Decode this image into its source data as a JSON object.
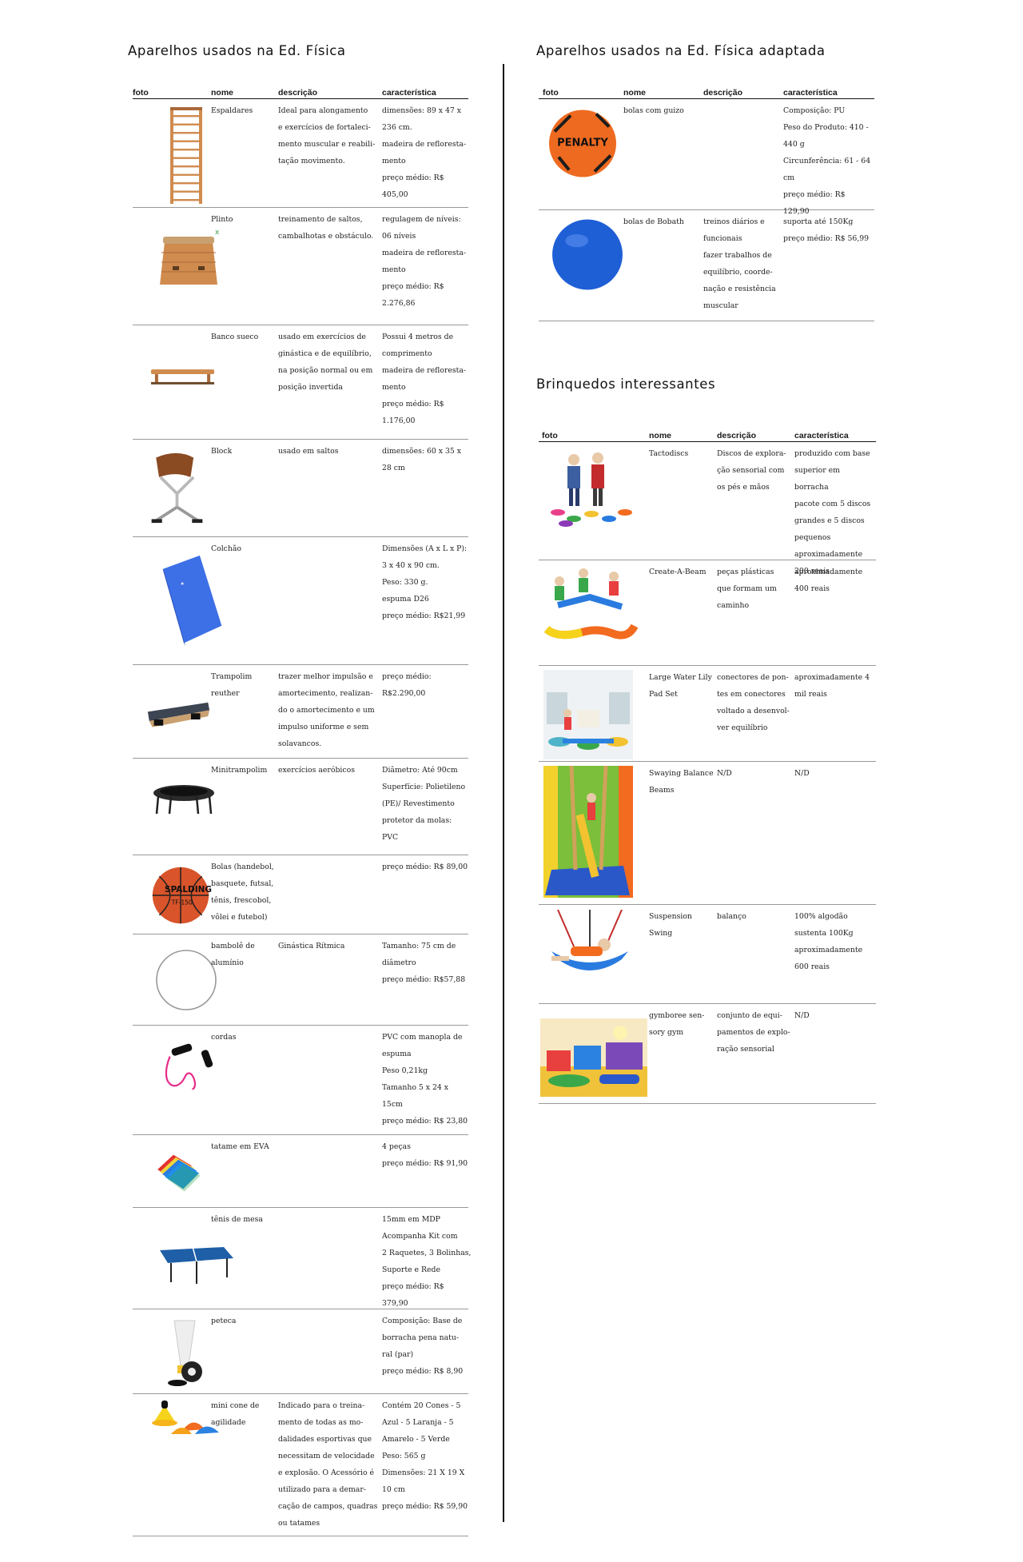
{
  "sections": {
    "left_title": "Aparelhos usados na Ed. Física",
    "adapt_title": "Aparelhos usados na Ed. Física adaptada",
    "toys_title": "Brinquedos interessantes"
  },
  "headers": {
    "foto": "foto",
    "nome": "nome",
    "descricao": "descrição",
    "caracteristica": "característica"
  },
  "left_rows": [
    {
      "icon": "wall-bars-photo",
      "nome": [
        "Espaldares"
      ],
      "desc": [
        "Ideal para alongamento",
        "e exercícios de fortaleci-",
        "mento muscular e reabili-",
        "tação movimento."
      ],
      "carac": [
        "dimensões: 89 x 47 x",
        "236 cm.",
        "madeira de refloresta-",
        "mento",
        "preço médio: R$ 405,00"
      ]
    },
    {
      "icon": "vaulting-box-photo",
      "nome": [
        "Plinto"
      ],
      "desc": [
        "treinamento de saltos,",
        "cambalhotas e obstáculo."
      ],
      "carac": [
        "regulagem de níveis:",
        "06 níveis",
        "madeira de refloresta-",
        "mento",
        "preço médio: R$",
        "2.276,86"
      ]
    },
    {
      "icon": "swedish-bench-photo",
      "nome": [
        "Banco sueco"
      ],
      "desc": [
        "usado em exercícios de",
        "ginástica e de equilíbrio,",
        "na posição normal ou em",
        "posição invertida"
      ],
      "carac": [
        "Possui 4 metros de",
        "comprimento",
        "madeira de refloresta-",
        "mento",
        "preço médio:  R$",
        "1.176,00"
      ]
    },
    {
      "icon": "pommel-block-photo",
      "nome": [
        "Block"
      ],
      "desc": [
        "usado em saltos"
      ],
      "carac": [
        "dimensões: 60 x 35 x",
        "28 cm"
      ]
    },
    {
      "icon": "mattress-photo",
      "nome": [
        "Colchão"
      ],
      "desc": [],
      "carac": [
        "Dimensões (A x L x P):",
        "3 x 40 x 90 cm.",
        "Peso: 330 g.",
        "espuma D26",
        "preço médio: R$21,99"
      ]
    },
    {
      "icon": "springboard-photo",
      "nome": [
        "Trampolim",
        "reuther"
      ],
      "desc": [
        "trazer melhor impulsão e",
        "amortecimento, realizan-",
        "do o amortecimento e um",
        "impulso uniforme e sem",
        "solavancos."
      ],
      "carac": [
        "preço médio:",
        "R$2.290,00"
      ]
    },
    {
      "icon": "mini-trampoline-photo",
      "nome": [
        "Minitrampolim"
      ],
      "desc": [
        "exercícios aeróbicos"
      ],
      "carac": [
        "Diâmetro: Até 90cm",
        "Superfície: Polietileno",
        "(PE)/ Revestimento",
        "protetor da molas:",
        "PVC"
      ]
    },
    {
      "icon": "basketball-photo",
      "nome": [
        "Bolas (handebol,",
        "basquete, futsal,",
        "tênis, frescobol,",
        "vôlei e futebol)"
      ],
      "desc": [],
      "carac": [
        "preço médio: R$ 89,00"
      ]
    },
    {
      "icon": "hula-hoop-photo",
      "nome": [
        "bambolê de",
        "alumínio"
      ],
      "desc": [
        "Ginástica Rítmica"
      ],
      "carac": [
        "Tamanho: 75 cm de",
        "diâmetro",
        "preço médio: R$57,88"
      ]
    },
    {
      "icon": "jump-rope-photo",
      "nome": [
        "cordas"
      ],
      "desc": [],
      "carac": [
        "PVC com manopla de",
        "espuma",
        "Peso 0,21kg",
        "Tamanho 5 x 24 x",
        "15cm",
        "preço médio: R$ 23,80"
      ]
    },
    {
      "icon": "eva-mat-photo",
      "nome": [
        "tatame em EVA"
      ],
      "desc": [],
      "carac": [
        "4 peças",
        "preço médio: R$ 91,90"
      ]
    },
    {
      "icon": "ping-pong-table-photo",
      "nome": [
        "tênis de mesa"
      ],
      "desc": [],
      "carac": [
        "15mm em MDP",
        "Acompanha Kit com",
        "2 Raquetes, 3 Bolinhas,",
        "Suporte e Rede",
        "preço médio: R$ 379,90"
      ]
    },
    {
      "icon": "shuttlecock-photo",
      "nome": [
        "peteca"
      ],
      "desc": [],
      "carac": [
        "Composição: Base de",
        "borracha pena natu-",
        "ral (par)",
        "preço médio: R$ 8,90"
      ]
    },
    {
      "icon": "agility-cones-photo",
      "nome": [
        "mini cone de",
        "agilidade"
      ],
      "desc": [
        "Indicado para o treina-",
        "mento de todas as mo-",
        "dalidades esportivas que",
        "necessitam de velocidade",
        "e explosão. O Acessório é",
        "utilizado para a demar-",
        "cação de campos, quadras",
        "ou tatames"
      ],
      "carac": [
        "Contém 20 Cones - 5",
        "Azul - 5 Laranja - 5",
        "Amarelo - 5 Verde",
        "Peso: 565 g",
        "Dimensões: 21 X 19 X",
        "10 cm",
        "preço médio: R$ 59,90"
      ]
    }
  ],
  "adapt_rows": [
    {
      "icon": "bell-ball-photo",
      "ball_brand": "PENALTY",
      "nome": [
        "bolas com guizo"
      ],
      "desc": [],
      "carac": [
        "Composição: PU",
        "Peso do Produto: 410 -",
        "440 g",
        "Circunferência: 61 - 64",
        "cm",
        "preço médio: R$ 129,90"
      ]
    },
    {
      "icon": "bobath-ball-photo",
      "nome": [
        "bolas de Bobath"
      ],
      "desc": [
        "treinos diários e",
        "funcionais",
        "fazer trabalhos de",
        "equilíbrio, coorde-",
        "nação e resistência",
        "muscular"
      ],
      "carac": [
        "suporta até 150Kg",
        "preço médio: R$ 56,99"
      ]
    }
  ],
  "toy_rows": [
    {
      "icon": "tactodiscs-photo",
      "nome": [
        "Tactodiscs"
      ],
      "desc": [
        "Discos de explora-",
        "ção sensorial com",
        "os pés e mãos"
      ],
      "carac": [
        "produzido com base",
        "superior em borracha",
        "pacote com 5 discos",
        "grandes e 5 discos",
        "pequenos",
        "aproximadamente",
        "200 reais"
      ]
    },
    {
      "icon": "create-a-beam-photo",
      "nome": [
        "Create-A-Beam"
      ],
      "desc": [
        "peças plásticas",
        "que formam um",
        "caminho"
      ],
      "carac": [
        "aproximadamente",
        "400 reais"
      ]
    },
    {
      "icon": "water-lily-pads-photo",
      "nome": [
        "Large Water Lily",
        "Pad Set"
      ],
      "desc": [
        "conectores de pon-",
        "tes em conectores",
        "voltado a desenvol-",
        "ver equilíbrio"
      ],
      "carac": [
        "aproximadamente 4",
        "mil reais"
      ]
    },
    {
      "icon": "swaying-beams-photo",
      "nome": [
        "Swaying Balance",
        "Beams"
      ],
      "desc": [
        "N/D"
      ],
      "carac": [
        "N/D"
      ]
    },
    {
      "icon": "suspension-swing-photo",
      "nome": [
        "Suspension",
        "Swing"
      ],
      "desc": [
        "balanço"
      ],
      "carac": [
        "100% algodão",
        "sustenta 100Kg",
        "aproximadamente",
        "600 reais"
      ]
    },
    {
      "icon": "gymboree-gym-photo",
      "nome": [
        "gymboree sen-",
        "sory gym"
      ],
      "desc": [
        "conjunto de equi-",
        "pamentos de explo-",
        "ração sensorial"
      ],
      "carac": [
        "N/D"
      ]
    }
  ]
}
